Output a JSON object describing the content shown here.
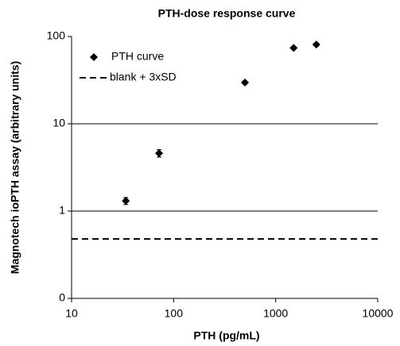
{
  "chart_data": {
    "type": "scatter",
    "title": "PTH-dose response curve",
    "x_label": "PTH (pg/mL)",
    "y_label": "Magnotech ioPTH assay (arbitrary units)",
    "x_log": true,
    "y_log": true,
    "grid": true,
    "legend": "upper left",
    "xlim": [
      10,
      10000
    ],
    "xticks": [
      10,
      100,
      1000,
      10000
    ],
    "ylim": [
      0.1,
      100
    ],
    "yticks": [
      {
        "value": 0.1,
        "label": "0"
      },
      1,
      10,
      100
    ],
    "series": [
      {
        "name": "PTH curve",
        "color": "#000000",
        "x": [
          34,
          72,
          500,
          1500,
          2500
        ],
        "values": [
          1.31,
          4.6,
          29.7,
          74,
          81
        ],
        "errors": [
          0.12,
          0.45,
          1.2,
          3,
          3
        ]
      }
    ],
    "reference_line": {
      "name": "blank + 3xSD",
      "value": 0.48,
      "color": "#000000"
    }
  }
}
